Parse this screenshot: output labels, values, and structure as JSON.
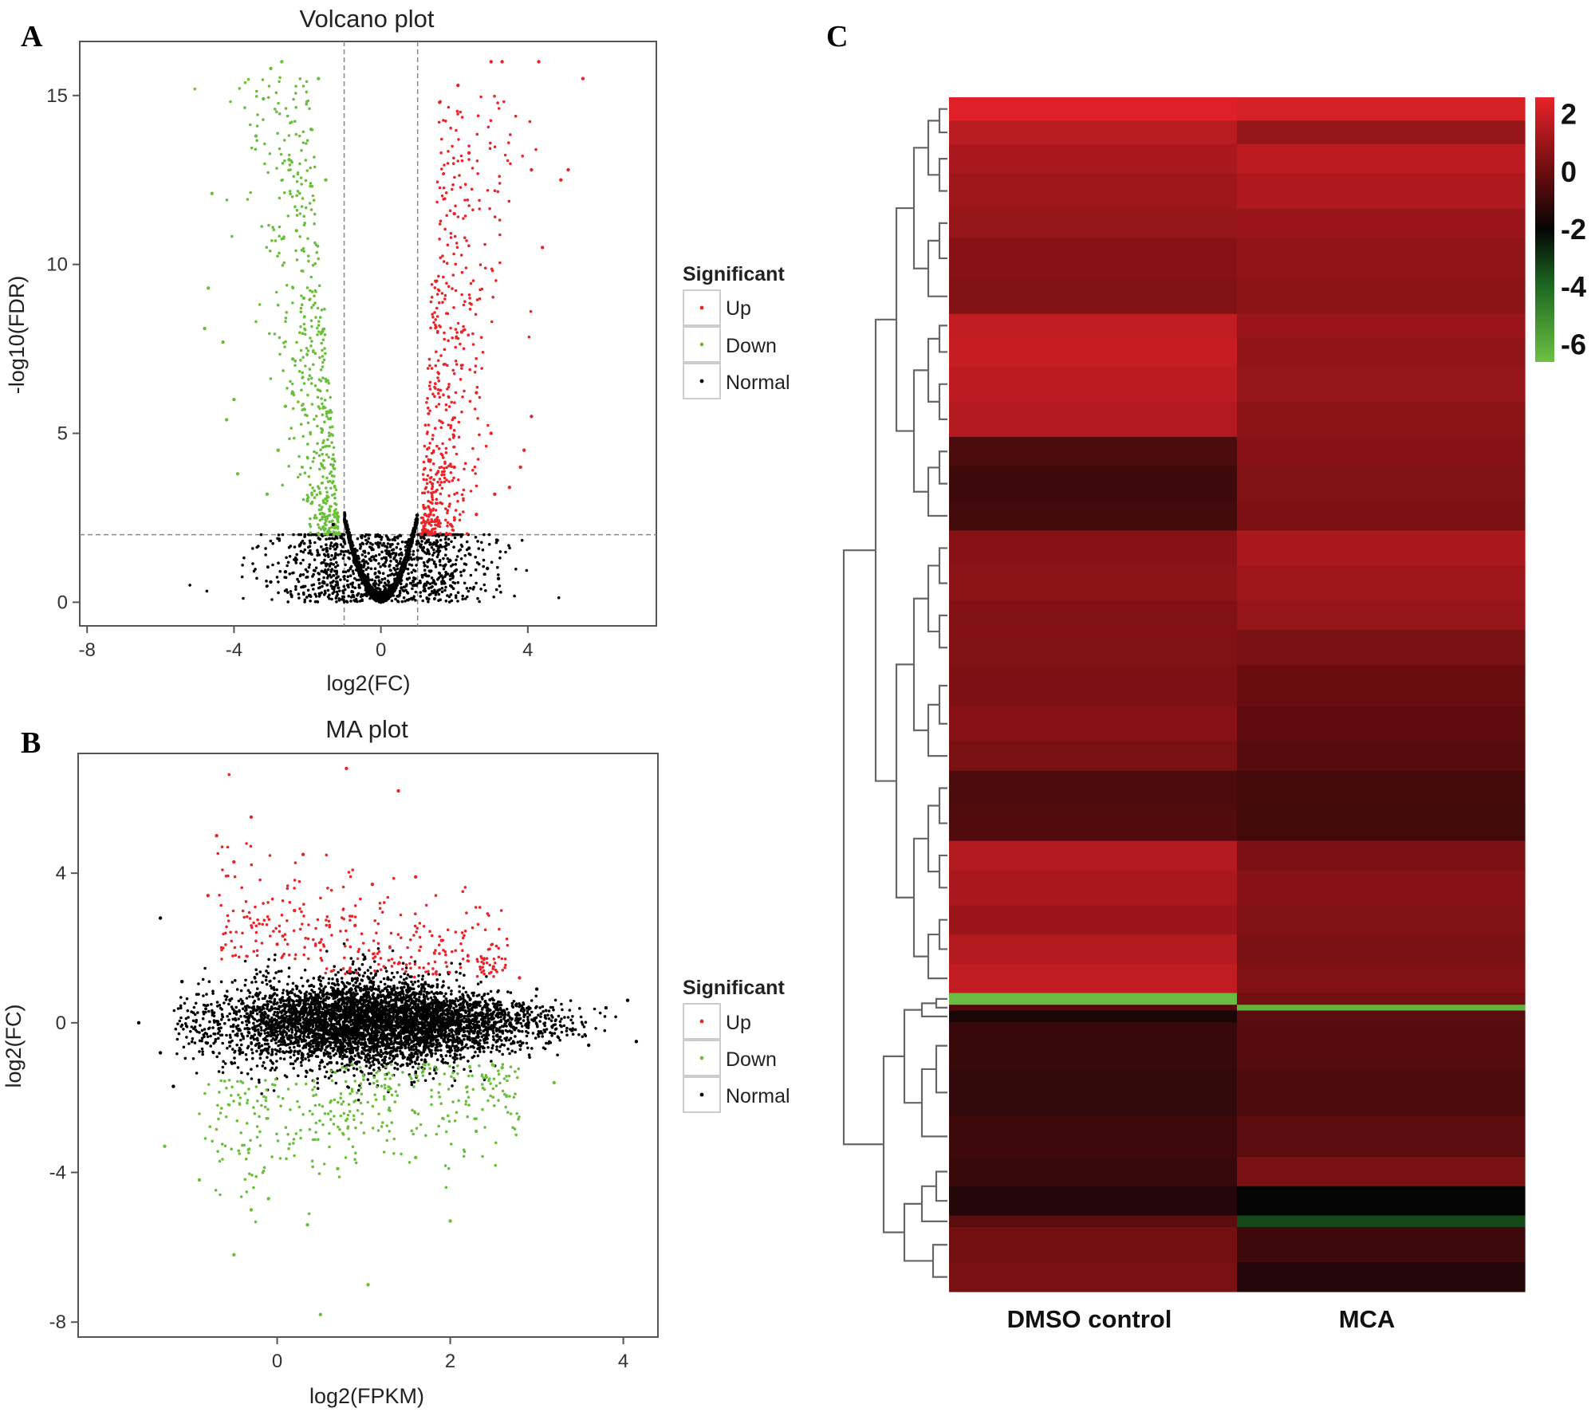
{
  "panel_labels": {
    "a": "A",
    "b": "B",
    "c": "C"
  },
  "colors": {
    "up": "#e8262a",
    "down": "#6abf3b",
    "normal": "#000000",
    "threshold_line": "#888888",
    "dendrogram": "#666666"
  },
  "chart_data": [
    {
      "id": "volcano",
      "type": "scatter",
      "title": "Volcano plot",
      "xlabel": "log2(FC)",
      "ylabel": "-log10(FDR)",
      "xlim": [
        -8.2,
        7.5
      ],
      "ylim": [
        -0.7,
        16.6
      ],
      "xticks": [
        -8,
        -4,
        0,
        4
      ],
      "xtick_labels": [
        "-8",
        "-4",
        "0",
        "4"
      ],
      "yticks": [
        0,
        5,
        10,
        15
      ],
      "ytick_labels": [
        "0",
        "5",
        "10",
        "15"
      ],
      "thresholds": {
        "log2fc": [
          -1,
          1
        ],
        "neg_log10_fdr": 2
      },
      "series": [
        {
          "name": "Up",
          "color": "#e8262a",
          "points": [
            [
              3.0,
              16
            ],
            [
              3.3,
              16
            ],
            [
              4.3,
              16
            ],
            [
              5.5,
              15.5
            ],
            [
              4.1,
              12.8
            ],
            [
              4.9,
              12.5
            ],
            [
              5.1,
              12.8
            ],
            [
              4.4,
              10.5
            ],
            [
              4.1,
              5.5
            ],
            [
              3.9,
              4.5
            ],
            [
              3.8,
              4.0
            ],
            [
              3.1,
              3.2
            ],
            [
              1.6,
              14.8
            ],
            [
              2.1,
              15.3
            ],
            [
              2.4,
              13.3
            ],
            [
              2.0,
              11.5
            ],
            [
              1.5,
              9.5
            ],
            [
              2.2,
              8.0
            ],
            [
              2.6,
              6.2
            ],
            [
              3.0,
              5.0
            ],
            [
              2.0,
              4.0
            ],
            [
              1.4,
              3.5
            ],
            [
              1.2,
              2.6
            ],
            [
              1.9,
              2.3
            ],
            [
              2.6,
              2.6
            ],
            [
              3.5,
              3.4
            ]
          ]
        },
        {
          "name": "Down",
          "color": "#6abf3b",
          "points": [
            [
              -4.6,
              12.1
            ],
            [
              -4.7,
              9.3
            ],
            [
              -4.8,
              8.1
            ],
            [
              -4.3,
              7.7
            ],
            [
              -4.0,
              6.0
            ],
            [
              -4.2,
              5.4
            ],
            [
              -3.9,
              3.8
            ],
            [
              -3.4,
              13.8
            ],
            [
              -3.2,
              14.9
            ],
            [
              -3.0,
              15.8
            ],
            [
              -2.7,
              16.0
            ],
            [
              -2.5,
              13.1
            ],
            [
              -2.3,
              11.0
            ],
            [
              -2.1,
              9.0
            ],
            [
              -2.4,
              7.2
            ],
            [
              -2.6,
              5.8
            ],
            [
              -2.8,
              4.5
            ],
            [
              -3.1,
              3.2
            ],
            [
              -2.0,
              3.0
            ],
            [
              -1.8,
              2.5
            ],
            [
              -1.6,
              8.0
            ],
            [
              -1.5,
              12.5
            ],
            [
              -1.7,
              15.5
            ],
            [
              -1.9,
              14.0
            ]
          ]
        },
        {
          "name": "Normal",
          "color": "#000000",
          "points": [
            [
              0,
              0
            ],
            [
              -0.5,
              0.2
            ],
            [
              0.5,
              0.2
            ],
            [
              -0.9,
              0.5
            ],
            [
              0.9,
              0.5
            ],
            [
              -1.0,
              1.8
            ],
            [
              1.0,
              1.8
            ],
            [
              -1.3,
              2.3
            ],
            [
              1.2,
              2.0
            ],
            [
              -2.2,
              1.7
            ],
            [
              2.4,
              1.6
            ],
            [
              -2.6,
              0.9
            ],
            [
              2.9,
              1.0
            ],
            [
              -3.0,
              0.6
            ],
            [
              3.2,
              0.7
            ]
          ]
        }
      ],
      "legend": {
        "title": "Significant",
        "entries": [
          "Up",
          "Down",
          "Normal"
        ],
        "position": "right"
      }
    },
    {
      "id": "ma",
      "type": "scatter",
      "title": "MA plot",
      "xlabel": "log2(FPKM)",
      "ylabel": "log2(FC)",
      "xlim": [
        -2.3,
        4.4
      ],
      "ylim": [
        -8.4,
        7.2
      ],
      "xticks": [
        0,
        2,
        4
      ],
      "xtick_labels": [
        "0",
        "2",
        "4"
      ],
      "yticks": [
        4,
        0,
        -4,
        -8
      ],
      "ytick_labels": [
        "4",
        "0",
        "-4",
        "-8"
      ],
      "series": [
        {
          "name": "Up",
          "color": "#e8262a",
          "points": [
            [
              0.8,
              6.8
            ],
            [
              1.4,
              6.2
            ],
            [
              -0.3,
              5.5
            ],
            [
              -0.7,
              5.0
            ],
            [
              -0.5,
              4.3
            ],
            [
              0.3,
              4.5
            ],
            [
              1.6,
              3.9
            ],
            [
              1.1,
              3.7
            ],
            [
              -0.8,
              3.4
            ],
            [
              0.2,
              3.0
            ],
            [
              0.9,
              2.6
            ],
            [
              1.9,
              2.2
            ],
            [
              2.5,
              1.5
            ],
            [
              2.8,
              1.2
            ],
            [
              0.0,
              2.1
            ]
          ]
        },
        {
          "name": "Down",
          "color": "#6abf3b",
          "points": [
            [
              0.5,
              -7.8
            ],
            [
              1.05,
              -7.0
            ],
            [
              -0.5,
              -6.2
            ],
            [
              0.35,
              -5.4
            ],
            [
              2.0,
              -5.3
            ],
            [
              -0.3,
              -5.0
            ],
            [
              -0.1,
              -4.7
            ],
            [
              -1.3,
              -3.3
            ],
            [
              -0.9,
              -4.2
            ],
            [
              0.7,
              -3.9
            ],
            [
              1.6,
              -3.6
            ],
            [
              2.3,
              -2.9
            ],
            [
              3.2,
              -1.6
            ],
            [
              2.6,
              -1.2
            ]
          ]
        },
        {
          "name": "Normal",
          "color": "#000000",
          "points": [
            [
              -1.6,
              0
            ],
            [
              -1.35,
              -0.8
            ],
            [
              -1.35,
              2.8
            ],
            [
              -1.2,
              -1.7
            ],
            [
              -1.1,
              1.1
            ],
            [
              3.8,
              0.4
            ],
            [
              4.05,
              0.6
            ],
            [
              4.15,
              -0.5
            ],
            [
              3.6,
              -0.6
            ],
            [
              3.0,
              0.9
            ],
            [
              0.8,
              0.3
            ],
            [
              1.5,
              -0.2
            ]
          ]
        }
      ],
      "legend": {
        "title": "Significant",
        "entries": [
          "Up",
          "Down",
          "Normal"
        ],
        "position": "right"
      }
    },
    {
      "id": "heatmap",
      "type": "heatmap",
      "columns": [
        "DMSO control",
        "MCA"
      ],
      "colorbar": {
        "range": [
          -6.6,
          2.6
        ],
        "ticks": [
          2,
          0,
          -2,
          -4,
          -6
        ],
        "tick_labels": [
          "2",
          "0",
          "-2",
          "-4",
          "-6"
        ],
        "stops": [
          {
            "value": 2.6,
            "color": "#e8232a"
          },
          {
            "value": 0,
            "color": "#6a0d0f"
          },
          {
            "value": -2,
            "color": "#050505"
          },
          {
            "value": -4,
            "color": "#1d6a22"
          },
          {
            "value": -6.6,
            "color": "#6ec043"
          }
        ]
      },
      "rows": [
        {
          "weight": 4,
          "values": [
            2.4,
            2.2
          ]
        },
        {
          "weight": 4,
          "values": [
            1.6,
            0.9
          ]
        },
        {
          "weight": 5,
          "values": [
            1.3,
            1.7
          ]
        },
        {
          "weight": 6,
          "values": [
            1.1,
            1.4
          ]
        },
        {
          "weight": 5,
          "values": [
            0.9,
            1.0
          ]
        },
        {
          "weight": 7,
          "values": [
            0.6,
            0.8
          ]
        },
        {
          "weight": 6,
          "values": [
            0.5,
            0.7
          ]
        },
        {
          "weight": 4,
          "values": [
            1.8,
            1.0
          ]
        },
        {
          "weight": 5,
          "values": [
            1.9,
            0.8
          ]
        },
        {
          "weight": 6,
          "values": [
            1.7,
            0.9
          ]
        },
        {
          "weight": 6,
          "values": [
            1.5,
            0.7
          ]
        },
        {
          "weight": 5,
          "values": [
            -0.6,
            0.6
          ]
        },
        {
          "weight": 6,
          "values": [
            -0.9,
            0.5
          ]
        },
        {
          "weight": 5,
          "values": [
            -0.8,
            0.4
          ]
        },
        {
          "weight": 6,
          "values": [
            0.6,
            1.3
          ]
        },
        {
          "weight": 6,
          "values": [
            0.7,
            1.1
          ]
        },
        {
          "weight": 5,
          "values": [
            0.5,
            0.9
          ]
        },
        {
          "weight": 6,
          "values": [
            0.5,
            0.3
          ]
        },
        {
          "weight": 7,
          "values": [
            0.4,
            0.0
          ]
        },
        {
          "weight": 6,
          "values": [
            0.6,
            -0.2
          ]
        },
        {
          "weight": 5,
          "values": [
            0.3,
            -0.4
          ]
        },
        {
          "weight": 6,
          "values": [
            -0.6,
            -0.7
          ]
        },
        {
          "weight": 6,
          "values": [
            -0.5,
            -0.8
          ]
        },
        {
          "weight": 5,
          "values": [
            1.5,
            0.4
          ]
        },
        {
          "weight": 6,
          "values": [
            1.3,
            0.6
          ]
        },
        {
          "weight": 5,
          "values": [
            1.0,
            0.5
          ]
        },
        {
          "weight": 5,
          "values": [
            1.5,
            0.3
          ]
        },
        {
          "weight": 5,
          "values": [
            1.8,
            0.5
          ]
        },
        {
          "weight": 2,
          "values": [
            -6.5,
            0.2
          ]
        },
        {
          "weight": 1,
          "values": [
            -0.5,
            -6.2
          ]
        },
        {
          "weight": 2,
          "values": [
            -1.6,
            -0.3
          ]
        },
        {
          "weight": 8,
          "values": [
            -1.0,
            -0.4
          ]
        },
        {
          "weight": 8,
          "values": [
            -1.1,
            -0.6
          ]
        },
        {
          "weight": 7,
          "values": [
            -0.9,
            -0.3
          ]
        },
        {
          "weight": 5,
          "values": [
            -1.0,
            0.3
          ]
        },
        {
          "weight": 5,
          "values": [
            -1.4,
            -2.0
          ]
        },
        {
          "weight": 2,
          "values": [
            -0.3,
            -3.3
          ]
        },
        {
          "weight": 6,
          "values": [
            0.2,
            -0.9
          ]
        },
        {
          "weight": 5,
          "values": [
            0.3,
            -1.4
          ]
        }
      ]
    }
  ]
}
